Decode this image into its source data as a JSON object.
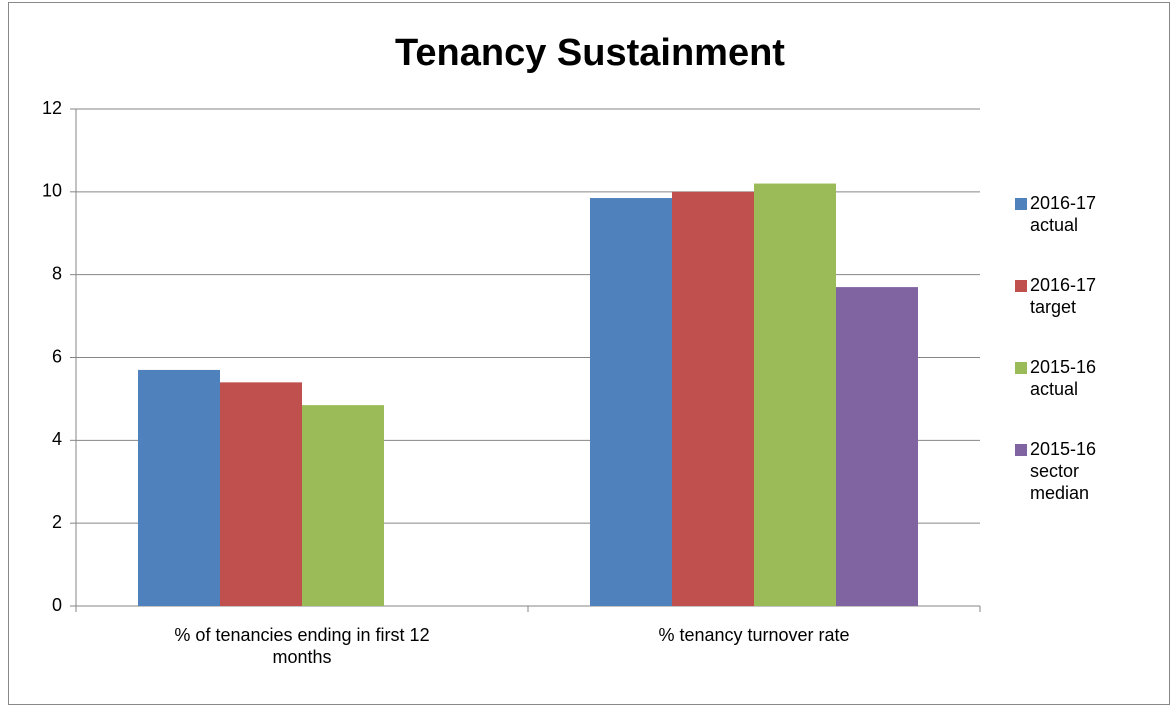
{
  "chart_data": {
    "type": "bar",
    "title": "Tenancy Sustainment",
    "categories": [
      "% of tenancies ending in first 12 months",
      "% tenancy turnover rate"
    ],
    "series": [
      {
        "name": "2016-17 actual",
        "color": "#4f81bd",
        "values": [
          5.7,
          9.85
        ]
      },
      {
        "name": "2016-17 target",
        "color": "#c0504d",
        "values": [
          5.4,
          10
        ]
      },
      {
        "name": "2015-16 actual",
        "color": "#9bbb59",
        "values": [
          4.85,
          10.2
        ]
      },
      {
        "name": "2015-16 sector median",
        "color": "#8064a2",
        "values": [
          null,
          7.7
        ]
      }
    ],
    "ylim": [
      0,
      12
    ],
    "yticks": [
      0,
      2,
      4,
      6,
      8,
      10,
      12
    ],
    "grid": true,
    "legend": "right"
  }
}
